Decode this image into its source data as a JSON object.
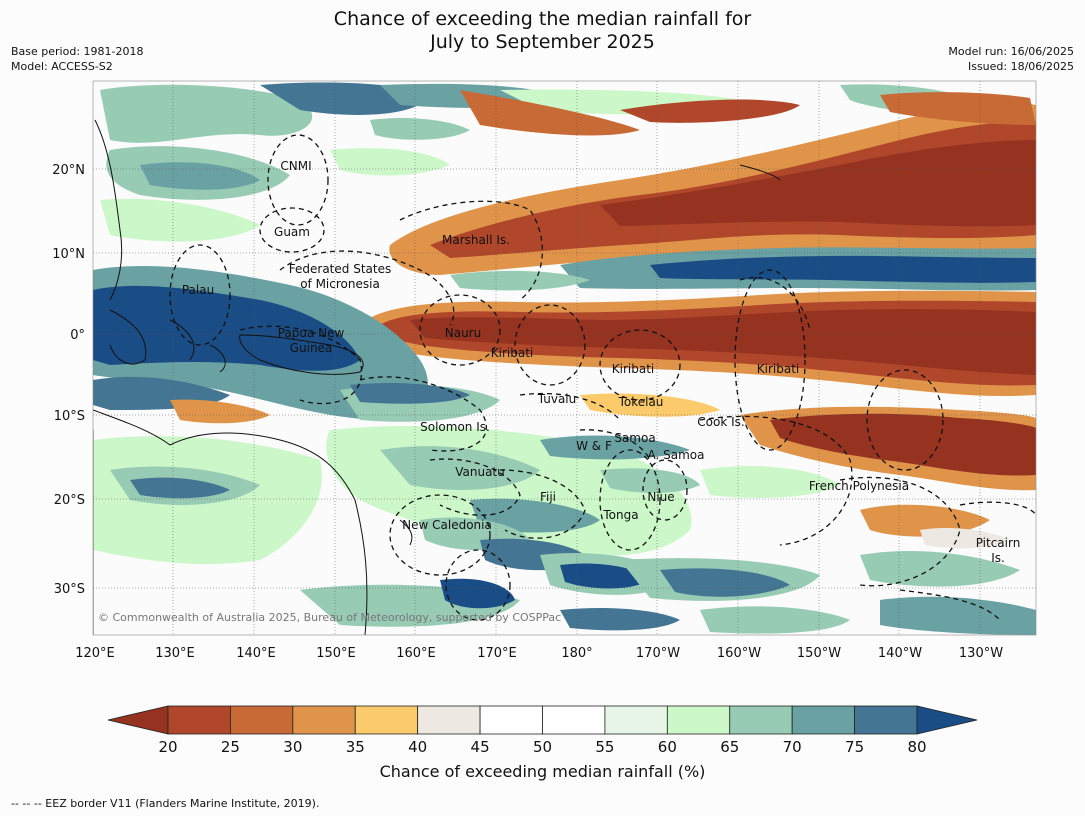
{
  "header": {
    "title_line1": "Chance of exceeding the median rainfall for",
    "title_line2": "July to September 2025",
    "base_period": "Base period: 1981-2018",
    "model": "Model: ACCESS-S2",
    "model_run": "Model run: 16/06/2025",
    "issued": "Issued: 18/06/2025"
  },
  "map": {
    "lat_labels": [
      "20°N",
      "10°N",
      "0°",
      "10°S",
      "20°S",
      "30°S"
    ],
    "lon_labels": [
      "120°E",
      "130°E",
      "140°E",
      "150°E",
      "160°E",
      "170°E",
      "180°",
      "170°W",
      "160°W",
      "150°W",
      "140°W",
      "130°W"
    ],
    "regions": [
      {
        "id": "cnmi",
        "name": "CNMI"
      },
      {
        "id": "guam",
        "name": "Guam"
      },
      {
        "id": "marshall",
        "name": "Marshall Is."
      },
      {
        "id": "fsm1",
        "name": "Federated States"
      },
      {
        "id": "fsm2",
        "name": "of Micronesia"
      },
      {
        "id": "palau",
        "name": "Palau"
      },
      {
        "id": "png1",
        "name": "Papua New"
      },
      {
        "id": "png2",
        "name": "Guinea"
      },
      {
        "id": "nauru",
        "name": "Nauru"
      },
      {
        "id": "kiribati1",
        "name": "Kiribati"
      },
      {
        "id": "kiribati2",
        "name": "Kiribati"
      },
      {
        "id": "kiribati3",
        "name": "Kiribati"
      },
      {
        "id": "tuvalu",
        "name": "Tuvalu"
      },
      {
        "id": "tokelau",
        "name": "Tokelau"
      },
      {
        "id": "cook",
        "name": "Cook Is."
      },
      {
        "id": "solomon",
        "name": "Solomon Is."
      },
      {
        "id": "samoa",
        "name": "Samoa"
      },
      {
        "id": "wf",
        "name": "W & F"
      },
      {
        "id": "asamoa",
        "name": "A. Samoa"
      },
      {
        "id": "vanuatu",
        "name": "Vanuatu"
      },
      {
        "id": "fiji",
        "name": "Fiji"
      },
      {
        "id": "niue",
        "name": "Niue"
      },
      {
        "id": "tonga",
        "name": "Tonga"
      },
      {
        "id": "newcal",
        "name": "New Caledonia"
      },
      {
        "id": "frpoly",
        "name": "French Polynesia"
      },
      {
        "id": "pitcairn1",
        "name": "Pitcairn"
      },
      {
        "id": "pitcairn2",
        "name": "Is."
      }
    ],
    "copyright": "© Commonwealth of Australia 2025, Bureau of Meteorology, supported by COSPPac"
  },
  "colorbar": {
    "ticks": [
      "20",
      "25",
      "30",
      "35",
      "40",
      "45",
      "50",
      "55",
      "60",
      "65",
      "70",
      "75",
      "80"
    ],
    "colors": [
      "#953220",
      "#b0472a",
      "#c86a35",
      "#e0944a",
      "#fbcb6b",
      "#ede9e2",
      "#ffffff",
      "#ffffff",
      "#e7f5e6",
      "#ccf8c9",
      "#97cbb4",
      "#6aa1a3",
      "#447593",
      "#1a4d85"
    ],
    "label": "Chance of exceeding median rainfall (%)"
  },
  "footer": "-- -- -- EEZ border V11 (Flanders Marine Institute, 2019)."
}
